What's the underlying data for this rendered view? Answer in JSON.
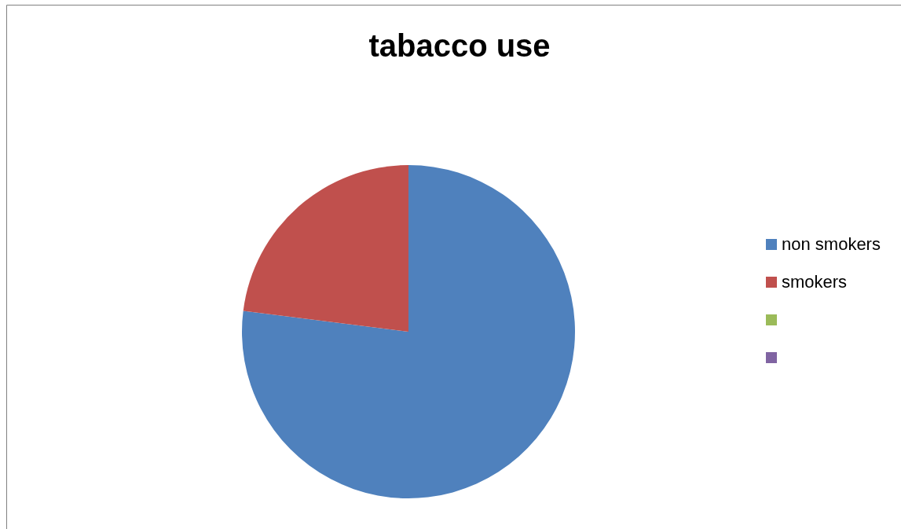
{
  "chart_data": {
    "type": "pie",
    "title": "tabacco use",
    "categories": [
      "non smokers",
      "smokers",
      null,
      null
    ],
    "values": [
      77,
      23,
      0,
      0
    ],
    "colors": [
      "#4f81bd",
      "#c0504d",
      "#9bbb59",
      "#8064a2"
    ],
    "legend": "right"
  }
}
